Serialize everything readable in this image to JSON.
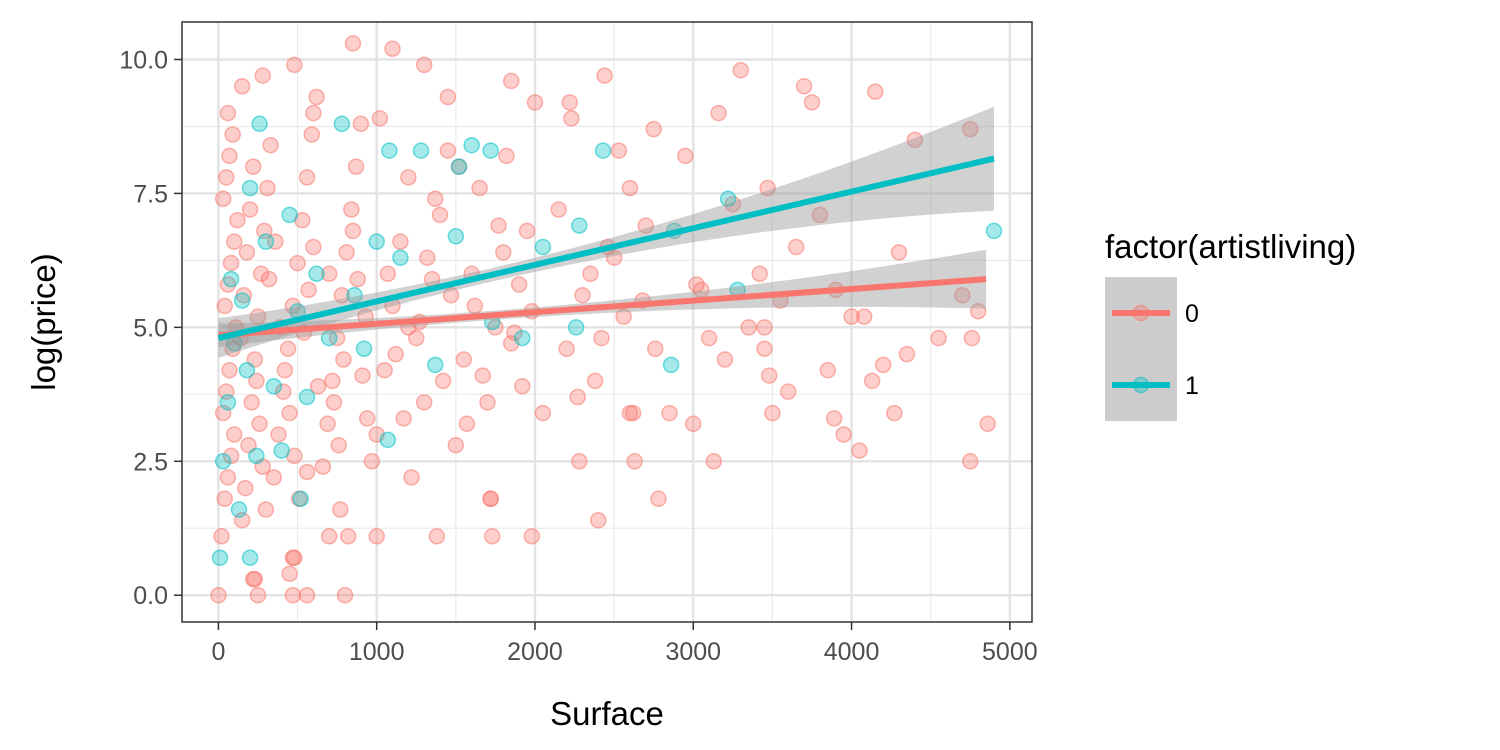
{
  "chart_data": {
    "type": "scatter",
    "xlabel": "Surface",
    "ylabel": "log(price)",
    "xlim": [
      -230,
      5140
    ],
    "ylim": [
      -0.5,
      10.7
    ],
    "x_ticks": [
      0,
      1000,
      2000,
      3000,
      4000,
      5000
    ],
    "x_tick_labels": [
      "0",
      "1000",
      "2000",
      "3000",
      "4000",
      "5000"
    ],
    "y_ticks": [
      0,
      2.5,
      5,
      7.5,
      10
    ],
    "y_tick_labels": [
      "0.0",
      "2.5",
      "5.0",
      "7.5",
      "10.0"
    ],
    "grid": true,
    "legend": {
      "title": "factor(artistliving)",
      "position": "right",
      "entries": [
        {
          "label": "0",
          "color": "#F8766D"
        },
        {
          "label": "1",
          "color": "#00BFC4"
        }
      ]
    },
    "series": [
      {
        "name": "0",
        "color": "#F8766D",
        "points": [
          [
            20,
            1.1
          ],
          [
            40,
            1.8
          ],
          [
            60,
            2.2
          ],
          [
            80,
            2.6
          ],
          [
            100,
            3.0
          ],
          [
            30,
            3.4
          ],
          [
            50,
            3.8
          ],
          [
            70,
            4.2
          ],
          [
            90,
            4.6
          ],
          [
            110,
            5.0
          ],
          [
            40,
            5.4
          ],
          [
            60,
            5.8
          ],
          [
            80,
            6.2
          ],
          [
            100,
            6.6
          ],
          [
            120,
            7.0
          ],
          [
            30,
            7.4
          ],
          [
            50,
            7.8
          ],
          [
            70,
            8.2
          ],
          [
            90,
            8.6
          ],
          [
            60,
            9.0
          ],
          [
            150,
            1.4
          ],
          [
            170,
            2.0
          ],
          [
            190,
            2.8
          ],
          [
            210,
            3.6
          ],
          [
            230,
            4.4
          ],
          [
            250,
            5.2
          ],
          [
            270,
            6.0
          ],
          [
            290,
            6.8
          ],
          [
            310,
            7.6
          ],
          [
            330,
            8.4
          ],
          [
            140,
            4.8
          ],
          [
            160,
            5.6
          ],
          [
            180,
            6.4
          ],
          [
            200,
            7.2
          ],
          [
            220,
            8.0
          ],
          [
            240,
            4.0
          ],
          [
            260,
            3.2
          ],
          [
            280,
            2.4
          ],
          [
            300,
            1.6
          ],
          [
            320,
            5.9
          ],
          [
            350,
            2.2
          ],
          [
            380,
            3.0
          ],
          [
            410,
            3.8
          ],
          [
            440,
            4.6
          ],
          [
            470,
            5.4
          ],
          [
            500,
            6.2
          ],
          [
            530,
            7.0
          ],
          [
            560,
            7.8
          ],
          [
            590,
            8.6
          ],
          [
            620,
            9.3
          ],
          [
            360,
            6.6
          ],
          [
            390,
            5.0
          ],
          [
            420,
            4.2
          ],
          [
            450,
            3.4
          ],
          [
            480,
            2.6
          ],
          [
            510,
            1.8
          ],
          [
            540,
            4.9
          ],
          [
            570,
            5.7
          ],
          [
            600,
            6.5
          ],
          [
            630,
            3.9
          ],
          [
            660,
            2.4
          ],
          [
            690,
            3.2
          ],
          [
            720,
            4.0
          ],
          [
            750,
            4.8
          ],
          [
            780,
            5.6
          ],
          [
            810,
            6.4
          ],
          [
            840,
            7.2
          ],
          [
            870,
            8.0
          ],
          [
            900,
            8.8
          ],
          [
            930,
            5.2
          ],
          [
            700,
            6.0
          ],
          [
            730,
            3.6
          ],
          [
            760,
            2.8
          ],
          [
            790,
            4.4
          ],
          [
            820,
            1.1
          ],
          [
            850,
            6.8
          ],
          [
            880,
            5.9
          ],
          [
            910,
            4.1
          ],
          [
            940,
            3.3
          ],
          [
            970,
            2.5
          ],
          [
            1000,
            3.0
          ],
          [
            1050,
            4.2
          ],
          [
            1100,
            5.4
          ],
          [
            1150,
            6.6
          ],
          [
            1200,
            7.8
          ],
          [
            1250,
            4.8
          ],
          [
            1300,
            3.6
          ],
          [
            1350,
            5.9
          ],
          [
            1400,
            7.1
          ],
          [
            1450,
            8.3
          ],
          [
            1020,
            8.9
          ],
          [
            1070,
            6.0
          ],
          [
            1120,
            4.5
          ],
          [
            1170,
            3.3
          ],
          [
            1220,
            2.2
          ],
          [
            1270,
            5.1
          ],
          [
            1320,
            6.3
          ],
          [
            1370,
            7.4
          ],
          [
            1420,
            4.0
          ],
          [
            1470,
            5.6
          ],
          [
            1500,
            2.8
          ],
          [
            1550,
            4.4
          ],
          [
            1600,
            6.0
          ],
          [
            1650,
            7.6
          ],
          [
            1700,
            3.6
          ],
          [
            1750,
            5.0
          ],
          [
            1800,
            6.4
          ],
          [
            1850,
            4.7
          ],
          [
            1900,
            5.8
          ],
          [
            1950,
            6.8
          ],
          [
            1520,
            8.0
          ],
          [
            1570,
            3.2
          ],
          [
            1620,
            5.4
          ],
          [
            1670,
            4.1
          ],
          [
            1720,
            1.8
          ],
          [
            1770,
            6.9
          ],
          [
            1820,
            8.2
          ],
          [
            1870,
            4.9
          ],
          [
            1920,
            3.9
          ],
          [
            1980,
            5.3
          ],
          [
            0,
            0.0
          ],
          [
            250,
            0.0
          ],
          [
            470,
            0.0
          ],
          [
            560,
            0.0
          ],
          [
            800,
            0.0
          ],
          [
            220,
            0.3
          ],
          [
            450,
            0.4
          ],
          [
            470,
            0.7
          ],
          [
            700,
            1.1
          ],
          [
            1000,
            1.1
          ],
          [
            1380,
            1.1
          ],
          [
            1730,
            1.1
          ],
          [
            1980,
            1.1
          ],
          [
            2400,
            1.4
          ],
          [
            2780,
            1.8
          ],
          [
            1720,
            1.8
          ],
          [
            2630,
            2.5
          ],
          [
            2280,
            2.5
          ],
          [
            3130,
            2.5
          ],
          [
            4750,
            2.5
          ],
          [
            2050,
            3.4
          ],
          [
            2200,
            4.6
          ],
          [
            2270,
            3.7
          ],
          [
            2350,
            6.0
          ],
          [
            2420,
            4.8
          ],
          [
            2500,
            6.3
          ],
          [
            2560,
            5.2
          ],
          [
            2620,
            3.4
          ],
          [
            2700,
            6.9
          ],
          [
            2760,
            4.6
          ],
          [
            2150,
            7.2
          ],
          [
            2230,
            8.9
          ],
          [
            2300,
            5.6
          ],
          [
            2380,
            4.0
          ],
          [
            2460,
            6.5
          ],
          [
            2530,
            8.3
          ],
          [
            2600,
            3.4
          ],
          [
            2680,
            5.5
          ],
          [
            2750,
            8.7
          ],
          [
            2850,
            3.4
          ],
          [
            2950,
            8.2
          ],
          [
            3000,
            3.2
          ],
          [
            3050,
            5.7
          ],
          [
            3100,
            4.8
          ],
          [
            3160,
            9.0
          ],
          [
            3200,
            4.4
          ],
          [
            3250,
            7.3
          ],
          [
            3300,
            9.8
          ],
          [
            3350,
            5.0
          ],
          [
            3420,
            6.0
          ],
          [
            3450,
            5.0
          ],
          [
            3500,
            3.4
          ],
          [
            3550,
            5.5
          ],
          [
            3600,
            3.8
          ],
          [
            3650,
            6.5
          ],
          [
            3700,
            9.5
          ],
          [
            3750,
            9.2
          ],
          [
            3800,
            7.1
          ],
          [
            3850,
            4.2
          ],
          [
            3900,
            5.7
          ],
          [
            3950,
            3.0
          ],
          [
            4000,
            5.2
          ],
          [
            4050,
            2.7
          ],
          [
            4080,
            5.2
          ],
          [
            4130,
            4.0
          ],
          [
            4150,
            9.4
          ],
          [
            4200,
            4.3
          ],
          [
            4270,
            3.4
          ],
          [
            4300,
            6.4
          ],
          [
            4350,
            4.5
          ],
          [
            4400,
            8.5
          ],
          [
            4550,
            4.8
          ],
          [
            4700,
            5.6
          ],
          [
            4750,
            8.7
          ],
          [
            4800,
            5.3
          ],
          [
            4860,
            3.2
          ],
          [
            4760,
            4.8
          ],
          [
            2000,
            9.2
          ],
          [
            2220,
            9.2
          ],
          [
            2440,
            9.7
          ],
          [
            1300,
            9.9
          ],
          [
            1100,
            10.2
          ],
          [
            850,
            10.3
          ],
          [
            480,
            9.9
          ],
          [
            150,
            9.5
          ],
          [
            280,
            9.7
          ],
          [
            600,
            9.0
          ],
          [
            1450,
            9.3
          ],
          [
            1850,
            9.6
          ],
          [
            3470,
            7.6
          ],
          [
            3480,
            4.1
          ],
          [
            3450,
            4.6
          ],
          [
            3890,
            3.3
          ],
          [
            560,
            2.3
          ],
          [
            770,
            1.6
          ],
          [
            480,
            0.7
          ],
          [
            230,
            0.3
          ],
          [
            1200,
            5.0
          ],
          [
            2600,
            7.6
          ],
          [
            3020,
            5.8
          ]
        ]
      },
      {
        "name": "1",
        "color": "#00BFC4",
        "points": [
          [
            10,
            0.7
          ],
          [
            200,
            0.7
          ],
          [
            30,
            2.5
          ],
          [
            60,
            3.6
          ],
          [
            100,
            4.7
          ],
          [
            150,
            5.5
          ],
          [
            200,
            7.6
          ],
          [
            260,
            8.8
          ],
          [
            300,
            6.6
          ],
          [
            350,
            3.9
          ],
          [
            400,
            2.7
          ],
          [
            450,
            7.1
          ],
          [
            500,
            5.3
          ],
          [
            560,
            3.7
          ],
          [
            620,
            6.0
          ],
          [
            700,
            4.8
          ],
          [
            780,
            8.8
          ],
          [
            860,
            5.6
          ],
          [
            920,
            4.6
          ],
          [
            1000,
            6.6
          ],
          [
            1070,
            2.9
          ],
          [
            1080,
            8.3
          ],
          [
            1150,
            6.3
          ],
          [
            1280,
            8.3
          ],
          [
            1520,
            8.0
          ],
          [
            1600,
            8.4
          ],
          [
            1720,
            8.3
          ],
          [
            1730,
            5.1
          ],
          [
            1920,
            4.8
          ],
          [
            2050,
            6.5
          ],
          [
            2260,
            5.0
          ],
          [
            2280,
            6.9
          ],
          [
            2430,
            8.3
          ],
          [
            2860,
            4.3
          ],
          [
            2880,
            6.8
          ],
          [
            3220,
            7.4
          ],
          [
            3280,
            5.7
          ],
          [
            4900,
            6.8
          ],
          [
            240,
            2.6
          ],
          [
            130,
            1.6
          ],
          [
            520,
            1.8
          ],
          [
            1370,
            4.3
          ],
          [
            1500,
            6.7
          ],
          [
            80,
            5.9
          ],
          [
            180,
            4.2
          ]
        ]
      }
    ],
    "regression_lines": [
      {
        "series": "0",
        "color": "#F8766D",
        "x": [
          0,
          4850
        ],
        "y": [
          4.85,
          5.9
        ],
        "ci_lower": [
          4.68,
          5.52
        ],
        "ci_upper": [
          5.02,
          6.28
        ]
      },
      {
        "series": "1",
        "color": "#00BFC4",
        "x": [
          0,
          4900
        ],
        "y": [
          4.8,
          8.15
        ],
        "ci_lower": [
          4.55,
          7.4
        ],
        "ci_upper": [
          5.05,
          8.92
        ]
      }
    ]
  }
}
